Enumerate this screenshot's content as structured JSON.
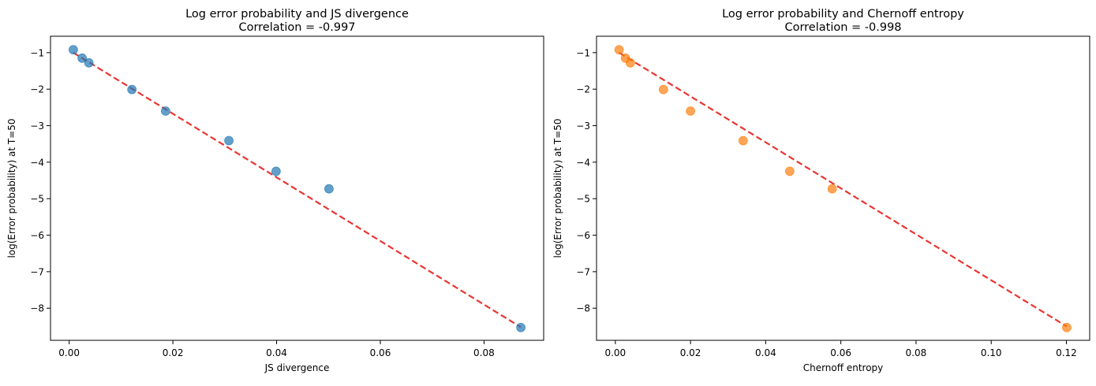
{
  "chart_data": [
    {
      "type": "scatter",
      "title": "Log error probability and JS divergence",
      "subtitle": "Correlation = -0.997",
      "xlabel": "JS divergence",
      "ylabel": "log(Error probability) at T=50",
      "xlim": [
        -0.0036,
        0.0915
      ],
      "ylim": [
        -8.88,
        -0.55
      ],
      "xticks": [
        0.0,
        0.02,
        0.04,
        0.06,
        0.08
      ],
      "xtick_labels": [
        "0.00",
        "0.02",
        "0.04",
        "0.06",
        "0.08"
      ],
      "yticks": [
        -1,
        -2,
        -3,
        -4,
        -5,
        -6,
        -7,
        -8
      ],
      "ytick_labels": [
        "−1",
        "−2",
        "−3",
        "−4",
        "−5",
        "−6",
        "−7",
        "−8"
      ],
      "grid": false,
      "point_color": "#1f77b4",
      "line_color": "#e8201c",
      "points": [
        {
          "x": 0.0008,
          "y": -0.92
        },
        {
          "x": 0.0025,
          "y": -1.15
        },
        {
          "x": 0.0038,
          "y": -1.28
        },
        {
          "x": 0.0121,
          "y": -2.01
        },
        {
          "x": 0.0186,
          "y": -2.6
        },
        {
          "x": 0.0308,
          "y": -3.41
        },
        {
          "x": 0.0399,
          "y": -4.25
        },
        {
          "x": 0.0501,
          "y": -4.73
        },
        {
          "x": 0.0871,
          "y": -8.53
        }
      ],
      "fit_line": [
        {
          "x": 0.0008,
          "y": -1.0
        },
        {
          "x": 0.0871,
          "y": -8.52
        }
      ]
    },
    {
      "type": "scatter",
      "title": "Log error probability and Chernoff entropy",
      "subtitle": "Correlation = -0.998",
      "xlabel": "Chernoff entropy",
      "ylabel": "log(Error probability) at T=50",
      "xlim": [
        -0.005,
        0.1262
      ],
      "ylim": [
        -8.88,
        -0.55
      ],
      "xticks": [
        0.0,
        0.02,
        0.04,
        0.06,
        0.08,
        0.1,
        0.12
      ],
      "xtick_labels": [
        "0.00",
        "0.02",
        "0.04",
        "0.06",
        "0.08",
        "0.10",
        "0.12"
      ],
      "yticks": [
        -1,
        -2,
        -3,
        -4,
        -5,
        -6,
        -7,
        -8
      ],
      "ytick_labels": [
        "−1",
        "−2",
        "−3",
        "−4",
        "−5",
        "−6",
        "−7",
        "−8"
      ],
      "grid": false,
      "point_color": "#ff7f0e",
      "line_color": "#e8201c",
      "points": [
        {
          "x": 0.001,
          "y": -0.92
        },
        {
          "x": 0.0027,
          "y": -1.15
        },
        {
          "x": 0.004,
          "y": -1.28
        },
        {
          "x": 0.0128,
          "y": -2.01
        },
        {
          "x": 0.02,
          "y": -2.6
        },
        {
          "x": 0.034,
          "y": -3.41
        },
        {
          "x": 0.0464,
          "y": -4.25
        },
        {
          "x": 0.0577,
          "y": -4.73
        },
        {
          "x": 0.1201,
          "y": -8.53
        }
      ],
      "fit_line": [
        {
          "x": 0.001,
          "y": -1.0
        },
        {
          "x": 0.1201,
          "y": -8.5
        }
      ]
    }
  ]
}
